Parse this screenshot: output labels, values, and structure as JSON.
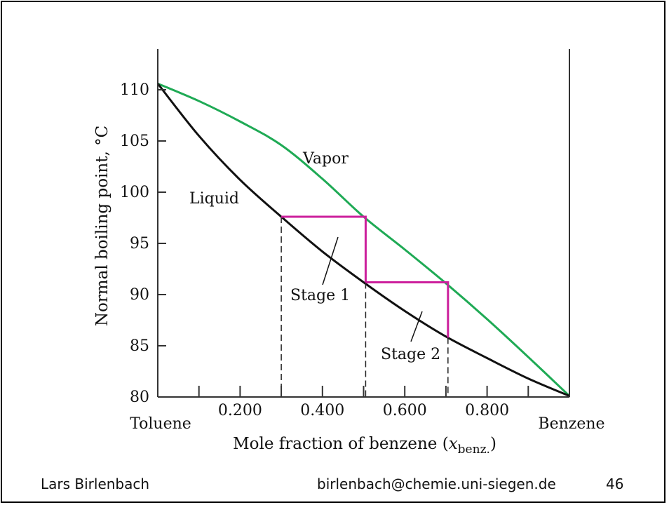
{
  "footer": {
    "author": "Lars Birlenbach",
    "email": "birlenbach@chemie.uni-siegen.de",
    "page_number": "46"
  },
  "colors": {
    "vapor": "#1faa55",
    "liquid": "#111111",
    "stages": "#cc1f9c",
    "axes": "#333333"
  },
  "chart_data": {
    "type": "line",
    "xlabel_main": "Mole fraction of benzene (",
    "xlabel_var": "x",
    "xlabel_sub": "benz.",
    "xlabel_close": ")",
    "ylabel": "Normal boiling point, °C",
    "x_end_labels": {
      "left": "Toluene",
      "right": "Benzene"
    },
    "xlim": [
      0,
      1
    ],
    "ylim": [
      80,
      113
    ],
    "x_ticks": [
      0.1,
      0.2,
      0.3,
      0.4,
      0.5,
      0.6,
      0.7,
      0.8,
      0.9
    ],
    "x_tick_labels": [
      {
        "x": 0.2,
        "label": "0.200"
      },
      {
        "x": 0.4,
        "label": "0.400"
      },
      {
        "x": 0.6,
        "label": "0.600"
      },
      {
        "x": 0.8,
        "label": "0.800"
      }
    ],
    "y_ticks": [
      {
        "y": 80,
        "label": "80"
      },
      {
        "y": 85,
        "label": "85"
      },
      {
        "y": 90,
        "label": "90"
      },
      {
        "y": 95,
        "label": "95"
      },
      {
        "y": 100,
        "label": "100"
      },
      {
        "y": 105,
        "label": "105"
      },
      {
        "y": 110,
        "label": "110"
      }
    ],
    "series": [
      {
        "name": "Vapor",
        "x": [
          0,
          0.1,
          0.2,
          0.3,
          0.4,
          0.5,
          0.6,
          0.7,
          0.8,
          0.9,
          1.0
        ],
        "y": [
          110.6,
          108.9,
          106.9,
          104.6,
          101.3,
          97.6,
          94.4,
          91.1,
          87.6,
          83.9,
          80.1
        ]
      },
      {
        "name": "Liquid",
        "x": [
          0,
          0.1,
          0.2,
          0.3,
          0.4,
          0.5,
          0.6,
          0.7,
          0.8,
          0.9,
          1.0
        ],
        "y": [
          110.6,
          105.5,
          101.2,
          97.6,
          94.2,
          91.2,
          88.4,
          85.9,
          83.8,
          81.8,
          80.1
        ]
      }
    ],
    "stages": [
      {
        "label": "Stage 1",
        "x_start": 0.3,
        "x_end": 0.505,
        "y_top": 97.6,
        "y_bottom": 91.2
      },
      {
        "label": "Stage 2",
        "x_start": 0.505,
        "x_end": 0.705,
        "y_top": 91.2,
        "y_bottom": 85.8
      }
    ],
    "dashed_drop_lines_x": [
      0.3,
      0.505,
      0.705
    ],
    "annotations": {
      "vapor_label": "Vapor",
      "liquid_label": "Liquid",
      "stage1_label": "Stage 1",
      "stage2_label": "Stage 2"
    }
  }
}
